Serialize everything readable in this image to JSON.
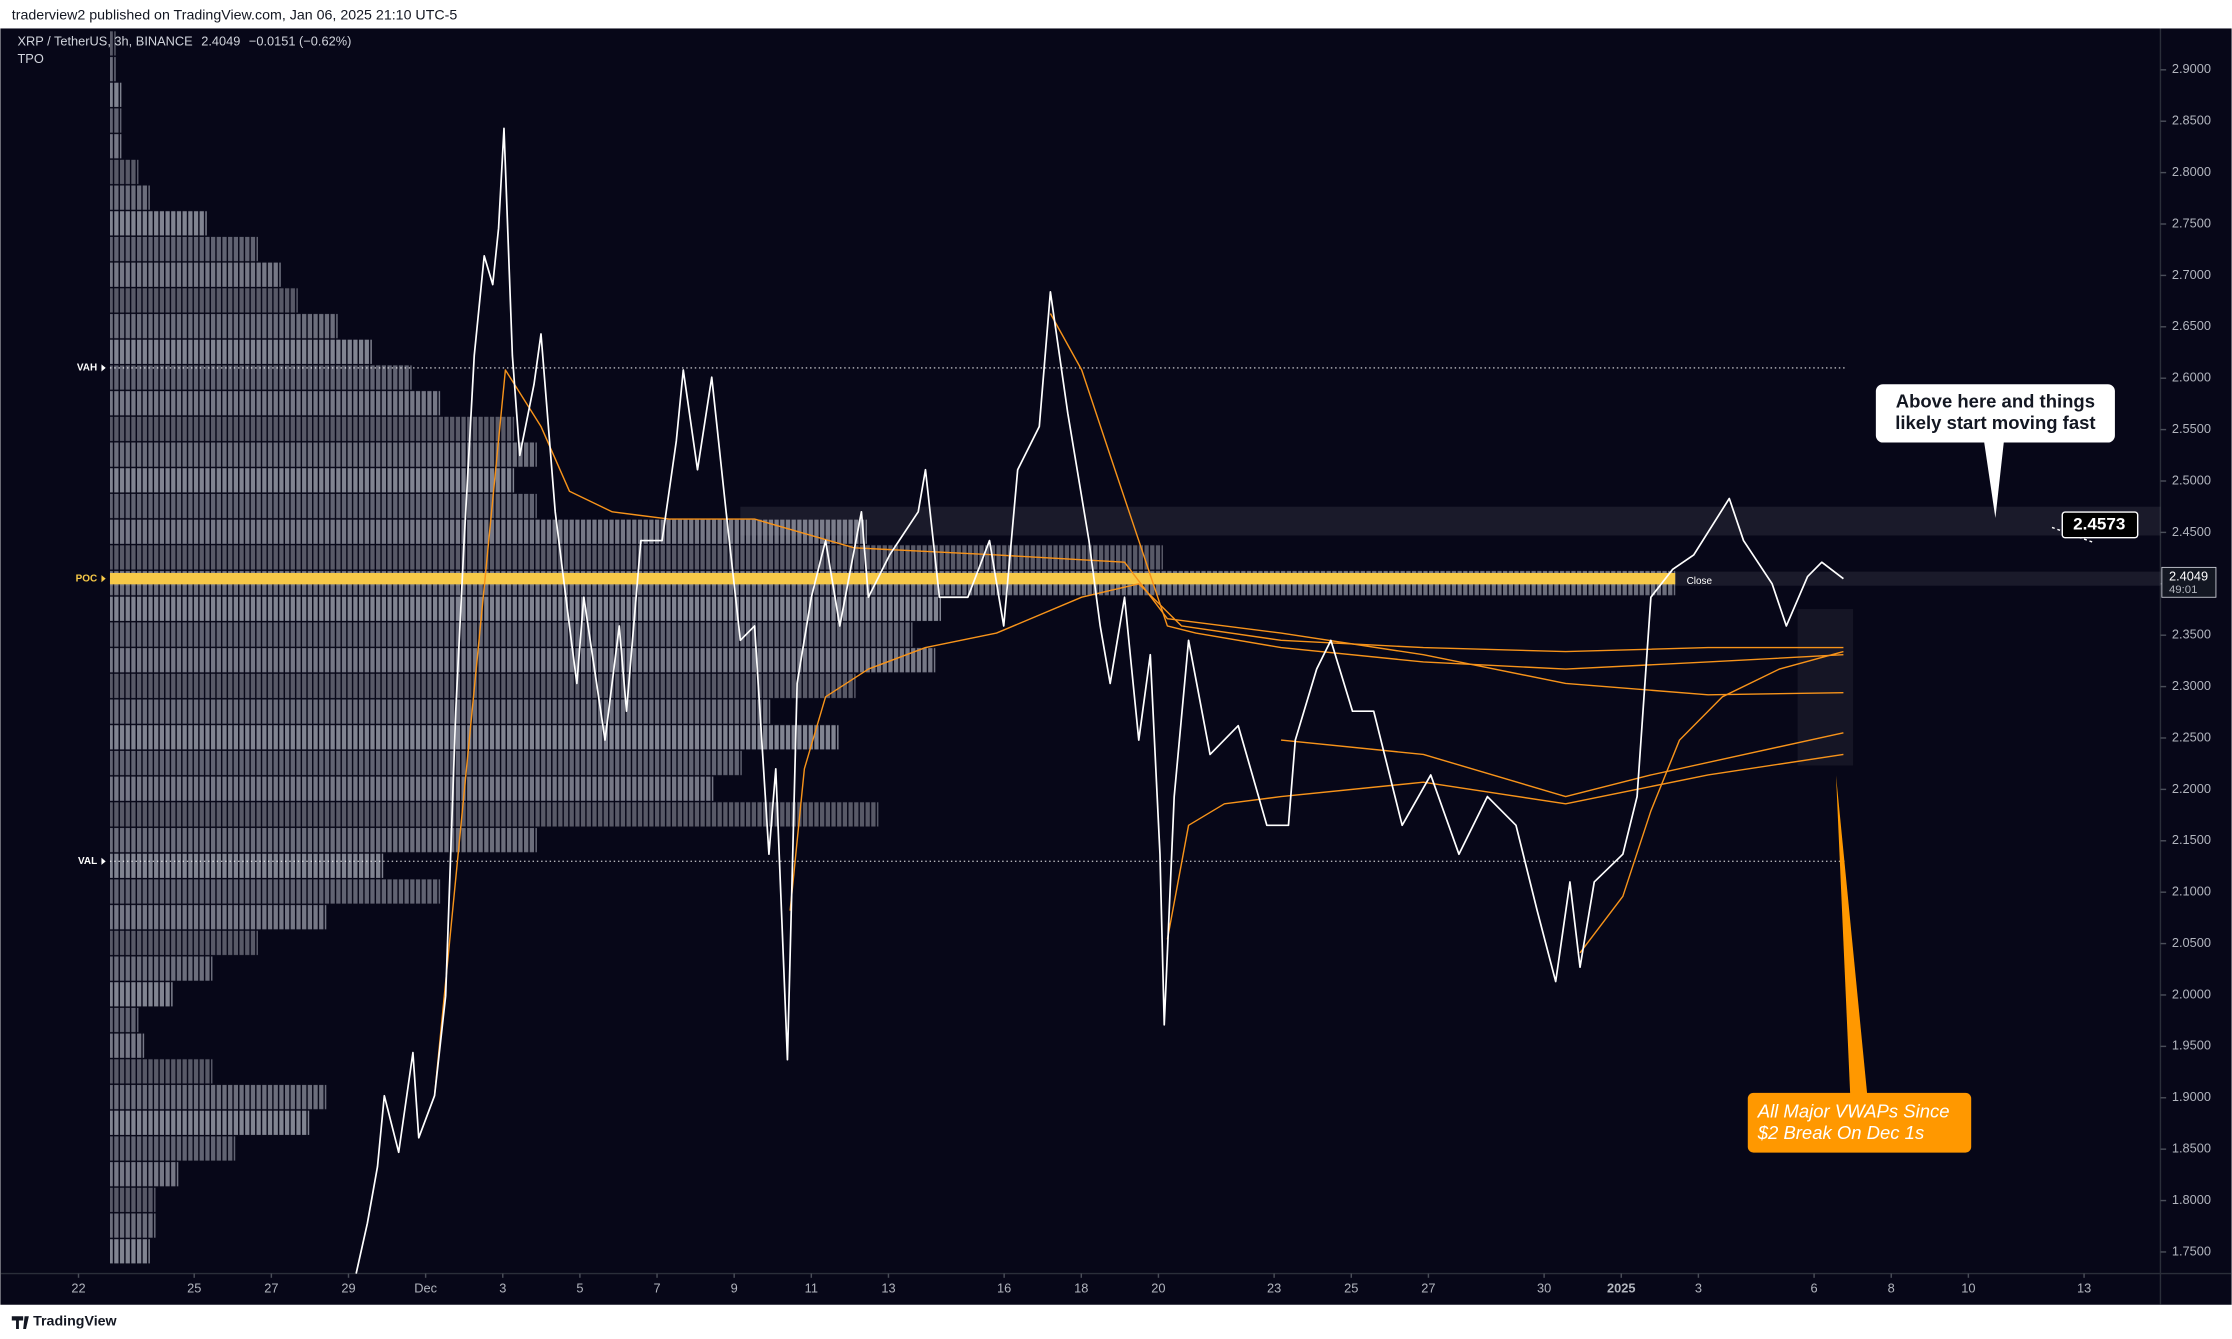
{
  "header": {
    "published": "traderview2 published on TradingView.com, Jan 06, 2025 21:10 UTC-5",
    "symbol": "XRP / TetherUS, 3h, BINANCE",
    "change": "−0.0151 (−0.62%)",
    "indicator": "TPO",
    "brand": "TradingView"
  },
  "chart_data": {
    "type": "line",
    "xlim": [
      -1.73,
      53.98
    ],
    "ylim": [
      1.729,
      2.943
    ],
    "xticks": [
      {
        "value": 0,
        "label": "22"
      },
      {
        "value": 3,
        "label": "25"
      },
      {
        "value": 5,
        "label": "27"
      },
      {
        "value": 7,
        "label": "29"
      },
      {
        "value": 9,
        "label": "Dec"
      },
      {
        "value": 11,
        "label": "3"
      },
      {
        "value": 13,
        "label": "5"
      },
      {
        "value": 15,
        "label": "7"
      },
      {
        "value": 17,
        "label": "9"
      },
      {
        "value": 19,
        "label": "11"
      },
      {
        "value": 21,
        "label": "13"
      },
      {
        "value": 24,
        "label": "16"
      },
      {
        "value": 26,
        "label": "18"
      },
      {
        "value": 28,
        "label": "20"
      },
      {
        "value": 31,
        "label": "23"
      },
      {
        "value": 33,
        "label": "25"
      },
      {
        "value": 35,
        "label": "27"
      },
      {
        "value": 38,
        "label": "30"
      },
      {
        "value": 40,
        "label": "2025"
      },
      {
        "value": 42,
        "label": "3"
      },
      {
        "value": 45,
        "label": "6"
      },
      {
        "value": 47,
        "label": "8"
      },
      {
        "value": 49,
        "label": "10"
      },
      {
        "value": 52,
        "label": "13"
      }
    ],
    "yticks": [
      {
        "value": 1.75,
        "label": "1.7500"
      },
      {
        "value": 1.8,
        "label": "1.8000"
      },
      {
        "value": 1.85,
        "label": "1.8500"
      },
      {
        "value": 1.9,
        "label": "1.9000"
      },
      {
        "value": 1.95,
        "label": "1.9500"
      },
      {
        "value": 2.0,
        "label": "2.0000"
      },
      {
        "value": 2.05,
        "label": "2.0500"
      },
      {
        "value": 2.1,
        "label": "2.1000"
      },
      {
        "value": 2.15,
        "label": "2.1500"
      },
      {
        "value": 2.2,
        "label": "2.2000"
      },
      {
        "value": 2.25,
        "label": "2.2500"
      },
      {
        "value": 2.3,
        "label": "2.3000"
      },
      {
        "value": 2.35,
        "label": "2.3500"
      },
      {
        "value": 2.4,
        "label": "2.4000"
      },
      {
        "value": 2.45,
        "label": "2.4500"
      },
      {
        "value": 2.5,
        "label": "2.5000"
      },
      {
        "value": 2.55,
        "label": "2.5500"
      },
      {
        "value": 2.6,
        "label": "2.6000"
      },
      {
        "value": 2.65,
        "label": "2.6500"
      },
      {
        "value": 2.7,
        "label": "2.7000"
      },
      {
        "value": 2.75,
        "label": "2.7500"
      },
      {
        "value": 2.8,
        "label": "2.8000"
      },
      {
        "value": 2.85,
        "label": "2.8500"
      },
      {
        "value": 2.9,
        "label": "2.9000"
      }
    ],
    "last_price": 2.4049,
    "countdown": "49:01",
    "close_label": "Close",
    "series": [
      {
        "color": "#ffffff",
        "x": [
          7.2,
          7.49,
          7.75,
          7.93,
          8.3,
          8.67,
          8.82,
          9.23,
          9.52,
          9.78,
          10.0,
          10.26,
          10.52,
          10.74,
          10.89,
          11.03,
          11.25,
          11.44,
          11.81,
          11.99,
          12.36,
          12.73,
          12.92,
          13.1,
          13.65,
          14.02,
          14.21,
          14.58,
          15.13,
          15.5,
          15.68,
          16.05,
          16.42,
          16.79,
          17.16,
          17.53,
          17.9,
          18.08,
          18.38,
          18.63,
          19.0,
          19.37,
          19.74,
          20.3,
          20.48,
          21.03,
          21.77,
          21.96,
          22.32,
          23.06,
          23.62,
          23.99,
          24.35,
          24.91,
          25.2,
          25.65,
          26.2,
          26.49,
          26.75,
          27.12,
          27.49,
          27.79,
          28.04,
          28.15,
          28.41,
          28.78,
          29.34,
          30.07,
          30.81,
          31.37,
          31.55,
          32.1,
          32.47,
          33.03,
          33.58,
          34.32,
          35.06,
          35.79,
          36.53,
          37.27,
          37.82,
          38.3,
          38.67,
          38.93,
          39.3,
          40.04,
          40.41,
          40.77,
          41.33,
          41.88,
          42.8,
          43.17,
          43.91,
          44.28,
          44.83,
          45.2,
          45.76
        ],
        "values": [
          1.729,
          1.778,
          1.833,
          1.902,
          1.847,
          1.944,
          1.861,
          1.902,
          1.999,
          2.276,
          2.442,
          2.622,
          2.719,
          2.691,
          2.746,
          2.843,
          2.622,
          2.525,
          2.594,
          2.643,
          2.47,
          2.359,
          2.303,
          2.387,
          2.248,
          2.359,
          2.276,
          2.442,
          2.442,
          2.539,
          2.608,
          2.511,
          2.601,
          2.47,
          2.345,
          2.359,
          2.137,
          2.22,
          1.937,
          2.303,
          2.387,
          2.442,
          2.359,
          2.47,
          2.387,
          2.428,
          2.47,
          2.511,
          2.387,
          2.387,
          2.442,
          2.359,
          2.511,
          2.553,
          2.684,
          2.566,
          2.442,
          2.359,
          2.303,
          2.387,
          2.248,
          2.331,
          2.137,
          1.971,
          2.193,
          2.345,
          2.234,
          2.262,
          2.165,
          2.165,
          2.248,
          2.317,
          2.345,
          2.276,
          2.276,
          2.165,
          2.214,
          2.137,
          2.193,
          2.165,
          2.082,
          2.013,
          2.11,
          2.027,
          2.11,
          2.137,
          2.193,
          2.387,
          2.414,
          2.428,
          2.483,
          2.442,
          2.4,
          2.359,
          2.407,
          2.421,
          2.4049
        ]
      },
      {
        "color": "#f7931a",
        "x": [
          9.23,
          11.07,
          11.99,
          12.73,
          13.84,
          15.31,
          17.53,
          20.11,
          23.8,
          27.12,
          28.23,
          31.18,
          34.87,
          38.56,
          42.25,
          45.76
        ],
        "values": [
          1.902,
          2.608,
          2.553,
          2.49,
          2.47,
          2.463,
          2.463,
          2.435,
          2.428,
          2.421,
          2.366,
          2.352,
          2.331,
          2.303,
          2.292,
          2.294
        ]
      },
      {
        "color": "#f7931a",
        "x": [
          25.2,
          26.01,
          26.75,
          27.49,
          28.23,
          28.97,
          31.18,
          34.87,
          38.56,
          42.25,
          45.76
        ],
        "values": [
          2.663,
          2.608,
          2.525,
          2.442,
          2.359,
          2.352,
          2.338,
          2.324,
          2.317,
          2.324,
          2.331
        ]
      },
      {
        "color": "#f7931a",
        "x": [
          18.45,
          18.82,
          19.37,
          20.48,
          21.96,
          23.8,
          26.01,
          27.49,
          28.6,
          31.18,
          34.87,
          38.56,
          42.25,
          45.76
        ],
        "values": [
          2.082,
          2.22,
          2.29,
          2.317,
          2.338,
          2.352,
          2.387,
          2.4,
          2.359,
          2.345,
          2.338,
          2.334,
          2.338,
          2.338
        ]
      },
      {
        "color": "#f7931a",
        "x": [
          28.23,
          28.78,
          29.71,
          31.18,
          34.87,
          38.56,
          40.41,
          42.25,
          45.76
        ],
        "values": [
          2.054,
          2.165,
          2.186,
          2.193,
          2.207,
          2.186,
          2.2,
          2.214,
          2.234
        ]
      },
      {
        "color": "#f7931a",
        "x": [
          38.93,
          40.04,
          40.77,
          41.51,
          42.62,
          44.1,
          45.76
        ],
        "values": [
          2.041,
          2.096,
          2.179,
          2.248,
          2.29,
          2.317,
          2.334
        ]
      },
      {
        "color": "#f7931a",
        "x": [
          31.18,
          34.87,
          38.56,
          40.77,
          45.76
        ],
        "values": [
          2.248,
          2.234,
          2.193,
          2.214,
          2.255
        ]
      }
    ],
    "profile": {
      "color": "#9a9daa",
      "step": 0.025,
      "prices": [
        2.925,
        2.9,
        2.875,
        2.85,
        2.825,
        2.8,
        2.775,
        2.75,
        2.725,
        2.7,
        2.675,
        2.65,
        2.625,
        2.6,
        2.575,
        2.55,
        2.525,
        2.5,
        2.475,
        2.45,
        2.425,
        2.4,
        2.375,
        2.35,
        2.325,
        2.3,
        2.275,
        2.25,
        2.225,
        2.2,
        2.175,
        2.15,
        2.125,
        2.1,
        2.075,
        2.05,
        2.025,
        2.0,
        1.975,
        1.95,
        1.925,
        1.9,
        1.875,
        1.85,
        1.825,
        1.8,
        1.775,
        1.75
      ],
      "counts": [
        1,
        1,
        2,
        2,
        2,
        5,
        7,
        17,
        26,
        30,
        33,
        40,
        46,
        53,
        58,
        71,
        75,
        71,
        75,
        133,
        185,
        275,
        146,
        141,
        145,
        131,
        116,
        128,
        111,
        106,
        135,
        75,
        48,
        58,
        38,
        26,
        18,
        11,
        5,
        6,
        18,
        38,
        35,
        22,
        12,
        8,
        8,
        7
      ]
    },
    "levels": [
      {
        "label": "VAH",
        "value": 2.61,
        "color": "#ffffff"
      },
      {
        "label": "POC",
        "value": 2.405,
        "color": "#f7c948"
      },
      {
        "label": "VAL",
        "value": 2.13,
        "color": "#ffffff"
      }
    ],
    "zone": [
      2.447,
      2.475
    ],
    "price_marker": 2.4573,
    "notes": {
      "upper": [
        "Above here and things",
        "likely start moving fast"
      ],
      "lower": [
        "All Major VWAPs Since",
        "$2 Break On Dec 1s"
      ]
    }
  }
}
